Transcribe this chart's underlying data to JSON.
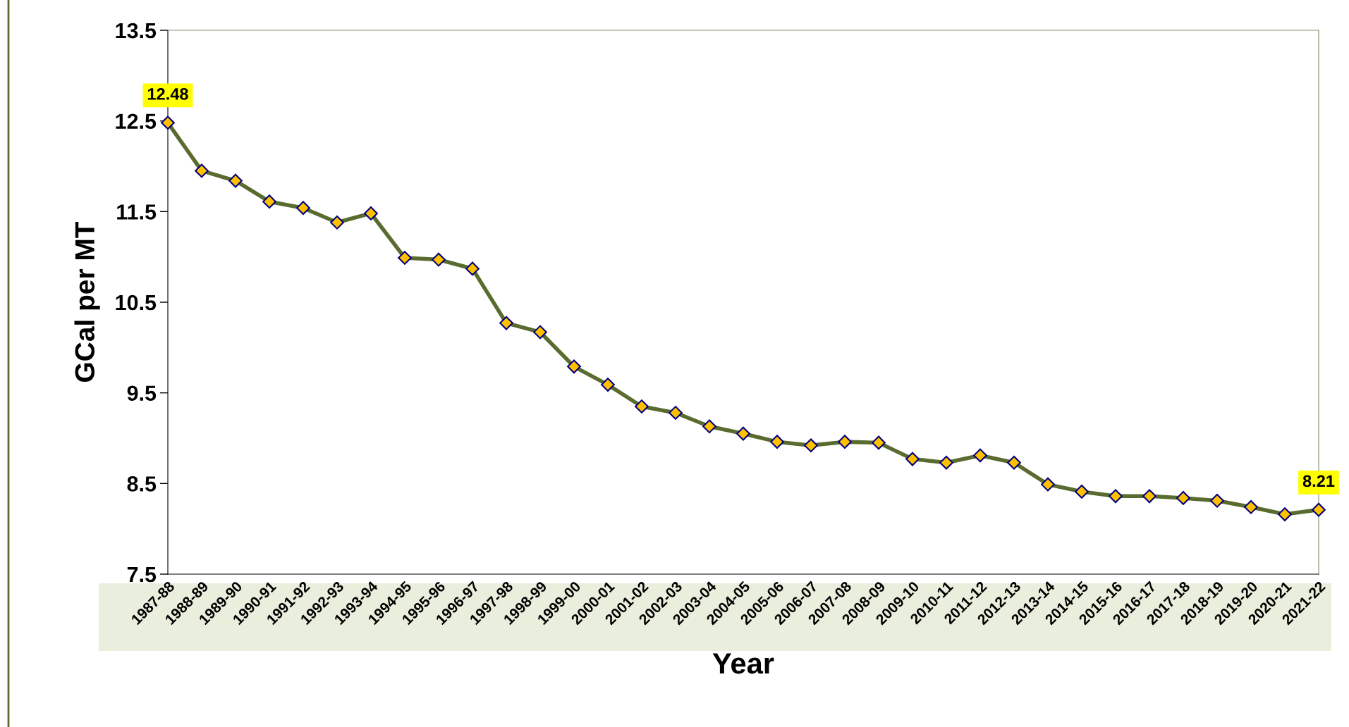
{
  "chart_data": {
    "type": "line",
    "xlabel": "Year",
    "ylabel": "GCal per MT",
    "categories": [
      "1987-88",
      "1988-89",
      "1989-90",
      "1990-91",
      "1991-92",
      "1992-93",
      "1993-94",
      "1994-95",
      "1995-96",
      "1996-97",
      "1997-98",
      "1998-99",
      "1999-00",
      "2000-01",
      "2001-02",
      "2002-03",
      "2003-04",
      "2004-05",
      "2005-06",
      "2006-07",
      "2007-08",
      "2008-09",
      "2009-10",
      "2010-11",
      "2011-12",
      "2012-13",
      "2013-14",
      "2014-15",
      "2015-16",
      "2016-17",
      "2017-18",
      "2018-19",
      "2019-20",
      "2020-21",
      "2021-22"
    ],
    "series": [
      {
        "color": "#5a6b30",
        "values": [
          12.48,
          11.95,
          11.84,
          11.61,
          11.54,
          11.38,
          11.48,
          10.99,
          10.97,
          10.87,
          10.27,
          10.17,
          9.79,
          9.59,
          9.35,
          9.28,
          9.13,
          9.05,
          8.96,
          8.92,
          8.96,
          8.95,
          8.77,
          8.73,
          8.81,
          8.73,
          8.49,
          8.41,
          8.36,
          8.36,
          8.34,
          8.31,
          8.24,
          8.16,
          8.21
        ],
        "value_labels": [
          "12.48",
          null,
          null,
          null,
          null,
          null,
          null,
          null,
          null,
          null,
          null,
          null,
          null,
          null,
          null,
          null,
          null,
          null,
          null,
          null,
          null,
          null,
          null,
          null,
          null,
          null,
          null,
          null,
          null,
          null,
          null,
          null,
          null,
          null,
          "8.21"
        ]
      }
    ],
    "ylim": [
      7.5,
      13.5
    ],
    "yticks": [
      7.5,
      8.5,
      9.5,
      10.5,
      11.5,
      12.5,
      13.5
    ],
    "marker": "diamond",
    "line_style": "solid",
    "grid": false,
    "legend": false
  }
}
